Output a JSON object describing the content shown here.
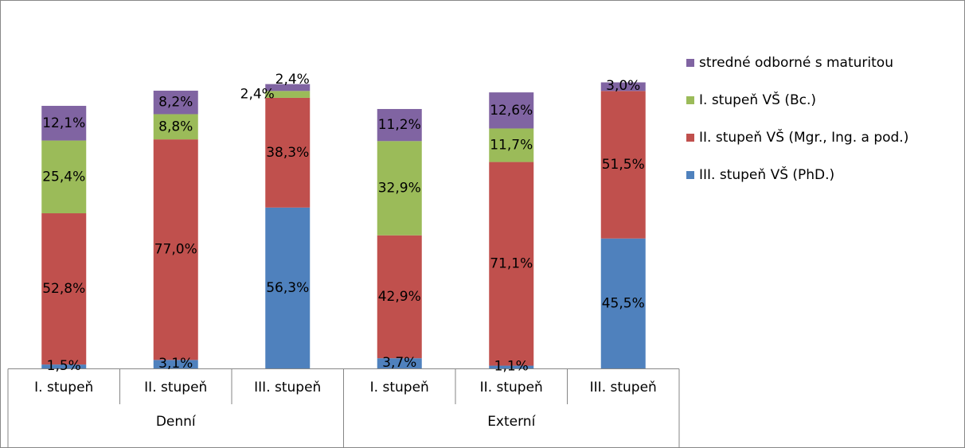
{
  "chart_data": {
    "type": "bar",
    "stacked": true,
    "groups": [
      {
        "name": "Denní",
        "categories": [
          "I. stupeň",
          "II. stupeň",
          "III. stupeň"
        ]
      },
      {
        "name": "Externí",
        "categories": [
          "I. stupeň",
          "II. stupeň",
          "III. stupeň"
        ]
      }
    ],
    "categories": [
      "I. stupeň",
      "II. stupeň",
      "III. stupeň",
      "I. stupeň",
      "II. stupeň",
      "III. stupeň"
    ],
    "series": [
      {
        "name": "III. stupeň VŠ (PhD.)",
        "color": "#4F81BD",
        "values": [
          1.5,
          3.1,
          56.3,
          3.7,
          1.1,
          45.5
        ],
        "labels": [
          "1,5%",
          "3,1%",
          "56,3%",
          "3,7%",
          "1,1%",
          "45,5%"
        ]
      },
      {
        "name": "II. stupeň VŠ (Mgr., Ing. a pod.)",
        "color": "#C0504D",
        "values": [
          52.8,
          77.0,
          38.3,
          42.9,
          71.1,
          51.5
        ],
        "labels": [
          "52,8%",
          "77,0%",
          "38,3%",
          "42,9%",
          "71,1%",
          "51,5%"
        ]
      },
      {
        "name": "I. stupeň VŠ (Bc.)",
        "color": "#9BBB59",
        "values": [
          25.4,
          8.8,
          2.4,
          32.9,
          11.7,
          0
        ],
        "labels": [
          "25,4%",
          "8,8%",
          "2,4%",
          "32,9%",
          "11,7%",
          ""
        ]
      },
      {
        "name": "stredné odborné s maturitou",
        "color": "#8064A2",
        "values": [
          12.1,
          8.2,
          2.4,
          11.2,
          12.6,
          3.0
        ],
        "labels": [
          "12,1%",
          "8,2%",
          "2,4%",
          "11,2%",
          "12,6%",
          "3,0%"
        ]
      }
    ],
    "ylim": [
      0,
      100
    ],
    "grid": false,
    "legend": "right",
    "legend_order": [
      "stredné odborné s maturitou",
      "I. stupeň VŠ (Bc.)",
      "II. stupeň VŠ (Mgr., Ing. a pod.)",
      "III. stupeň VŠ (PhD.)"
    ],
    "title": "",
    "xlabel": "",
    "ylabel": ""
  }
}
